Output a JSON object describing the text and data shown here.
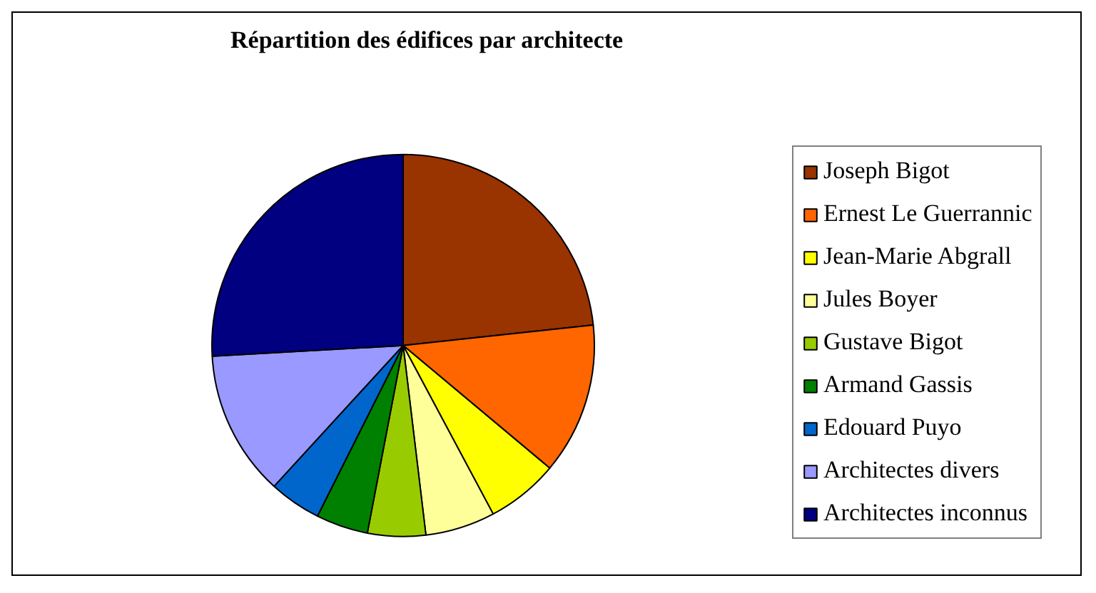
{
  "chart_data": {
    "type": "pie",
    "title": "Répartition des édifices par architecte",
    "categories": [
      "Joseph Bigot",
      "Ernest Le Guerrannic",
      "Jean-Marie Abgrall",
      "Jules Boyer",
      "Gustave Bigot",
      "Armand Gassis",
      "Edouard Puyo",
      "Architectes divers",
      "Architectes inconnus"
    ],
    "values": [
      23.3,
      12.8,
      6.1,
      5.9,
      4.9,
      4.4,
      4.4,
      12.3,
      25.9
    ],
    "colors": [
      "#993300",
      "#ff6600",
      "#ffff00",
      "#ffff99",
      "#99cc00",
      "#008000",
      "#0066cc",
      "#9999ff",
      "#000080"
    ],
    "legend": "right"
  }
}
